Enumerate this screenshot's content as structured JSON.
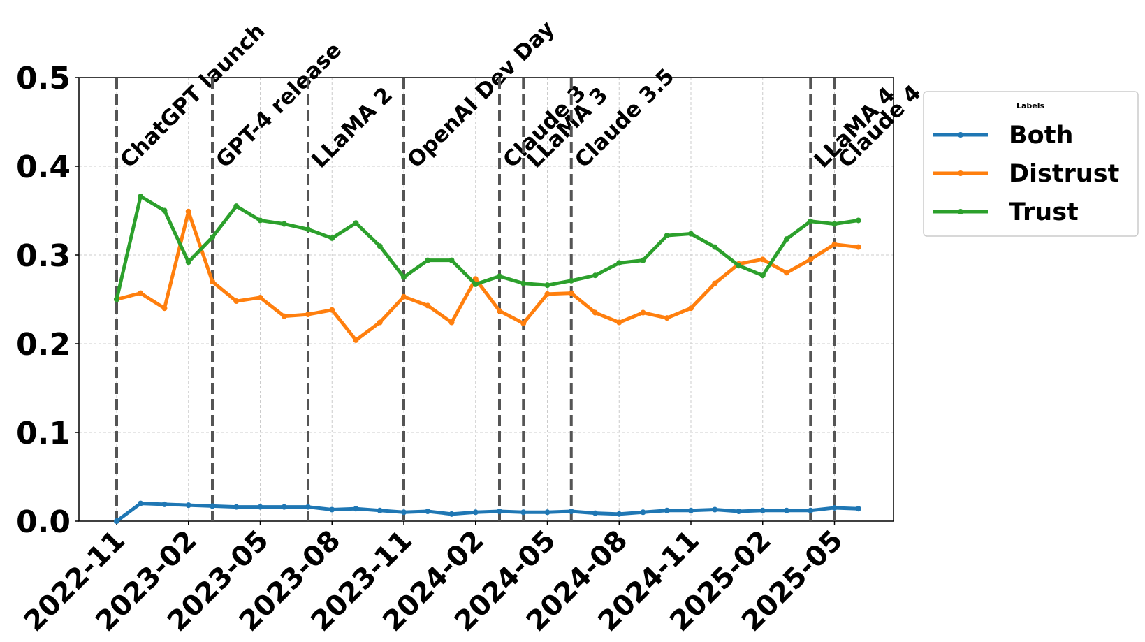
{
  "chart_data": {
    "type": "line",
    "x": [
      "2022-11",
      "2022-12",
      "2023-01",
      "2023-02",
      "2023-03",
      "2023-04",
      "2023-05",
      "2023-06",
      "2023-07",
      "2023-08",
      "2023-09",
      "2023-10",
      "2023-11",
      "2023-12",
      "2024-01",
      "2024-02",
      "2024-03",
      "2024-04",
      "2024-05",
      "2024-06",
      "2024-07",
      "2024-08",
      "2024-09",
      "2024-10",
      "2024-11",
      "2024-12",
      "2025-01",
      "2025-02",
      "2025-03",
      "2025-04",
      "2025-05",
      "2025-06"
    ],
    "series": [
      {
        "name": "Both",
        "color": "#1f77b4",
        "values": [
          0.0,
          0.02,
          0.019,
          0.018,
          0.017,
          0.016,
          0.016,
          0.016,
          0.016,
          0.013,
          0.014,
          0.012,
          0.01,
          0.011,
          0.008,
          0.01,
          0.011,
          0.01,
          0.01,
          0.011,
          0.009,
          0.008,
          0.01,
          0.012,
          0.012,
          0.013,
          0.011,
          0.012,
          0.012,
          0.012,
          0.015,
          0.014
        ]
      },
      {
        "name": "Distrust",
        "color": "#ff7f0e",
        "values": [
          0.25,
          0.257,
          0.24,
          0.349,
          0.27,
          0.248,
          0.252,
          0.231,
          0.233,
          0.238,
          0.204,
          0.224,
          0.253,
          0.243,
          0.224,
          0.273,
          0.237,
          0.223,
          0.256,
          0.257,
          0.235,
          0.224,
          0.235,
          0.229,
          0.24,
          0.268,
          0.29,
          0.295,
          0.28,
          0.295,
          0.312,
          0.309
        ]
      },
      {
        "name": "Trust",
        "color": "#2ca02c",
        "values": [
          0.25,
          0.366,
          0.35,
          0.292,
          0.32,
          0.355,
          0.339,
          0.335,
          0.329,
          0.319,
          0.336,
          0.31,
          0.275,
          0.294,
          0.294,
          0.267,
          0.276,
          0.268,
          0.266,
          0.271,
          0.277,
          0.291,
          0.294,
          0.322,
          0.324,
          0.309,
          0.288,
          0.277,
          0.318,
          0.338,
          0.335,
          0.339
        ]
      }
    ],
    "xticks": [
      "2022-11",
      "2023-02",
      "2023-05",
      "2023-08",
      "2023-11",
      "2024-02",
      "2024-05",
      "2024-08",
      "2024-11",
      "2025-02",
      "2025-05"
    ],
    "ylim": [
      0,
      0.5
    ],
    "yticks": [
      {
        "value": 0,
        "label": "0.0"
      },
      0.1,
      0.2,
      0.3,
      0.4,
      0.5
    ],
    "grid": true,
    "legend_title": "Labels",
    "legend_loc": "right",
    "events": [
      {
        "x": "2022-11",
        "label": "ChatGPT launch"
      },
      {
        "x": "2023-03",
        "label": "GPT-4 release"
      },
      {
        "x": "2023-07",
        "label": "LLaMA 2"
      },
      {
        "x": "2023-11",
        "label": "OpenAI Dev Day"
      },
      {
        "x": "2024-03",
        "label": "Claude 3"
      },
      {
        "x": "2024-04",
        "label": "LLaMA 3"
      },
      {
        "x": "2024-06",
        "label": "Claude 3.5"
      },
      {
        "x": "2025-04",
        "label": "LLaMA 4"
      },
      {
        "x": "2025-05",
        "label": "Claude 4"
      }
    ]
  }
}
